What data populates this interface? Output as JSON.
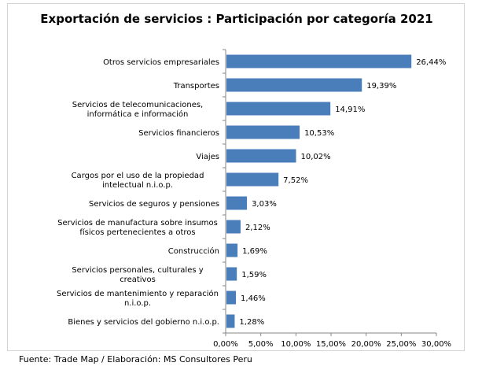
{
  "chart_data": {
    "type": "bar",
    "orientation": "horizontal",
    "title": "Exportación de servicios : Participación por categoría 2021",
    "categories": [
      "Otros servicios empresariales",
      "Transportes",
      "Servicios de telecomunicaciones, informática e información",
      "Servicios financieros",
      "Viajes",
      "Cargos por el uso de la propiedad intelectual n.i.o.p.",
      "Servicios de seguros y pensiones",
      "Servicios de manufactura sobre insumos físicos pertenecientes a otros",
      "Construcción",
      "Servicios personales, culturales y creativos",
      "Servicios de mantenimiento y reparación n.i.o.p.",
      "Bienes y servicios del gobierno n.i.o.p."
    ],
    "values": [
      26.44,
      19.39,
      14.91,
      10.53,
      10.02,
      7.52,
      3.03,
      2.12,
      1.69,
      1.59,
      1.46,
      1.28
    ],
    "value_labels": [
      "26,44%",
      "19,39%",
      "14,91%",
      "10,53%",
      "10,02%",
      "7,52%",
      "3,03%",
      "2,12%",
      "1,69%",
      "1,59%",
      "1,46%",
      "1,28%"
    ],
    "xlim": [
      0,
      30
    ],
    "x_ticks": [
      0,
      5,
      10,
      15,
      20,
      25,
      30
    ],
    "x_tick_labels": [
      "0,00%",
      "5,00%",
      "10,00%",
      "15,00%",
      "20,00%",
      "25,00%",
      "30,00%"
    ],
    "bar_color": "#4a7ebb",
    "grid": false,
    "legend": "none"
  },
  "source_note": "Fuente: Trade Map / Elaboración: MS Consultores Peru"
}
